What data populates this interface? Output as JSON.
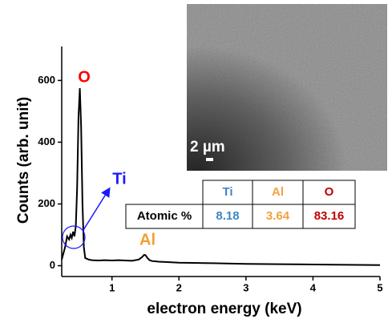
{
  "chart_data": {
    "type": "line",
    "x_label": "electron energy (keV)",
    "y_label": "Counts (arb. unit)",
    "xlim": [
      0.25,
      5
    ],
    "xticks": [
      1,
      2,
      3,
      4,
      5
    ],
    "ylim": [
      -35,
      710
    ],
    "yticks": [
      0,
      200,
      400,
      600
    ],
    "series": [
      {
        "color": "#000000",
        "x": [
          0.25,
          0.3,
          0.33,
          0.36,
          0.38,
          0.4,
          0.42,
          0.44,
          0.46,
          0.48,
          0.5,
          0.52,
          0.54,
          0.56,
          0.58,
          0.6,
          0.65,
          0.7,
          0.8,
          0.9,
          1.0,
          1.1,
          1.2,
          1.3,
          1.4,
          1.45,
          1.48,
          1.5,
          1.53,
          1.56,
          1.6,
          1.7,
          1.8,
          2.0,
          2.2,
          2.5,
          3.0,
          3.5,
          4.0,
          4.5,
          5.0
        ],
        "values": [
          20,
          60,
          95,
          85,
          100,
          90,
          110,
          95,
          130,
          250,
          480,
          575,
          450,
          200,
          60,
          25,
          20,
          18,
          17,
          18,
          17,
          18,
          17,
          16,
          20,
          28,
          35,
          34,
          25,
          18,
          15,
          13,
          12,
          10,
          9,
          8,
          6,
          5,
          4,
          3,
          2
        ]
      }
    ],
    "annotations": [
      {
        "text": "O",
        "color": "#ff0000"
      },
      {
        "text": "Ti",
        "color": "#1a1aff"
      },
      {
        "text": "Al",
        "color": "#f0a030"
      }
    ],
    "image_label": "2 µm",
    "table": {
      "header": [
        "Ti",
        "Al",
        "O"
      ],
      "header_colors": [
        "#3f85c6",
        "#f4a040",
        "#c00000"
      ],
      "row_label": "Atomic %",
      "values": [
        "8.18",
        "3.64",
        "83.16"
      ]
    }
  }
}
